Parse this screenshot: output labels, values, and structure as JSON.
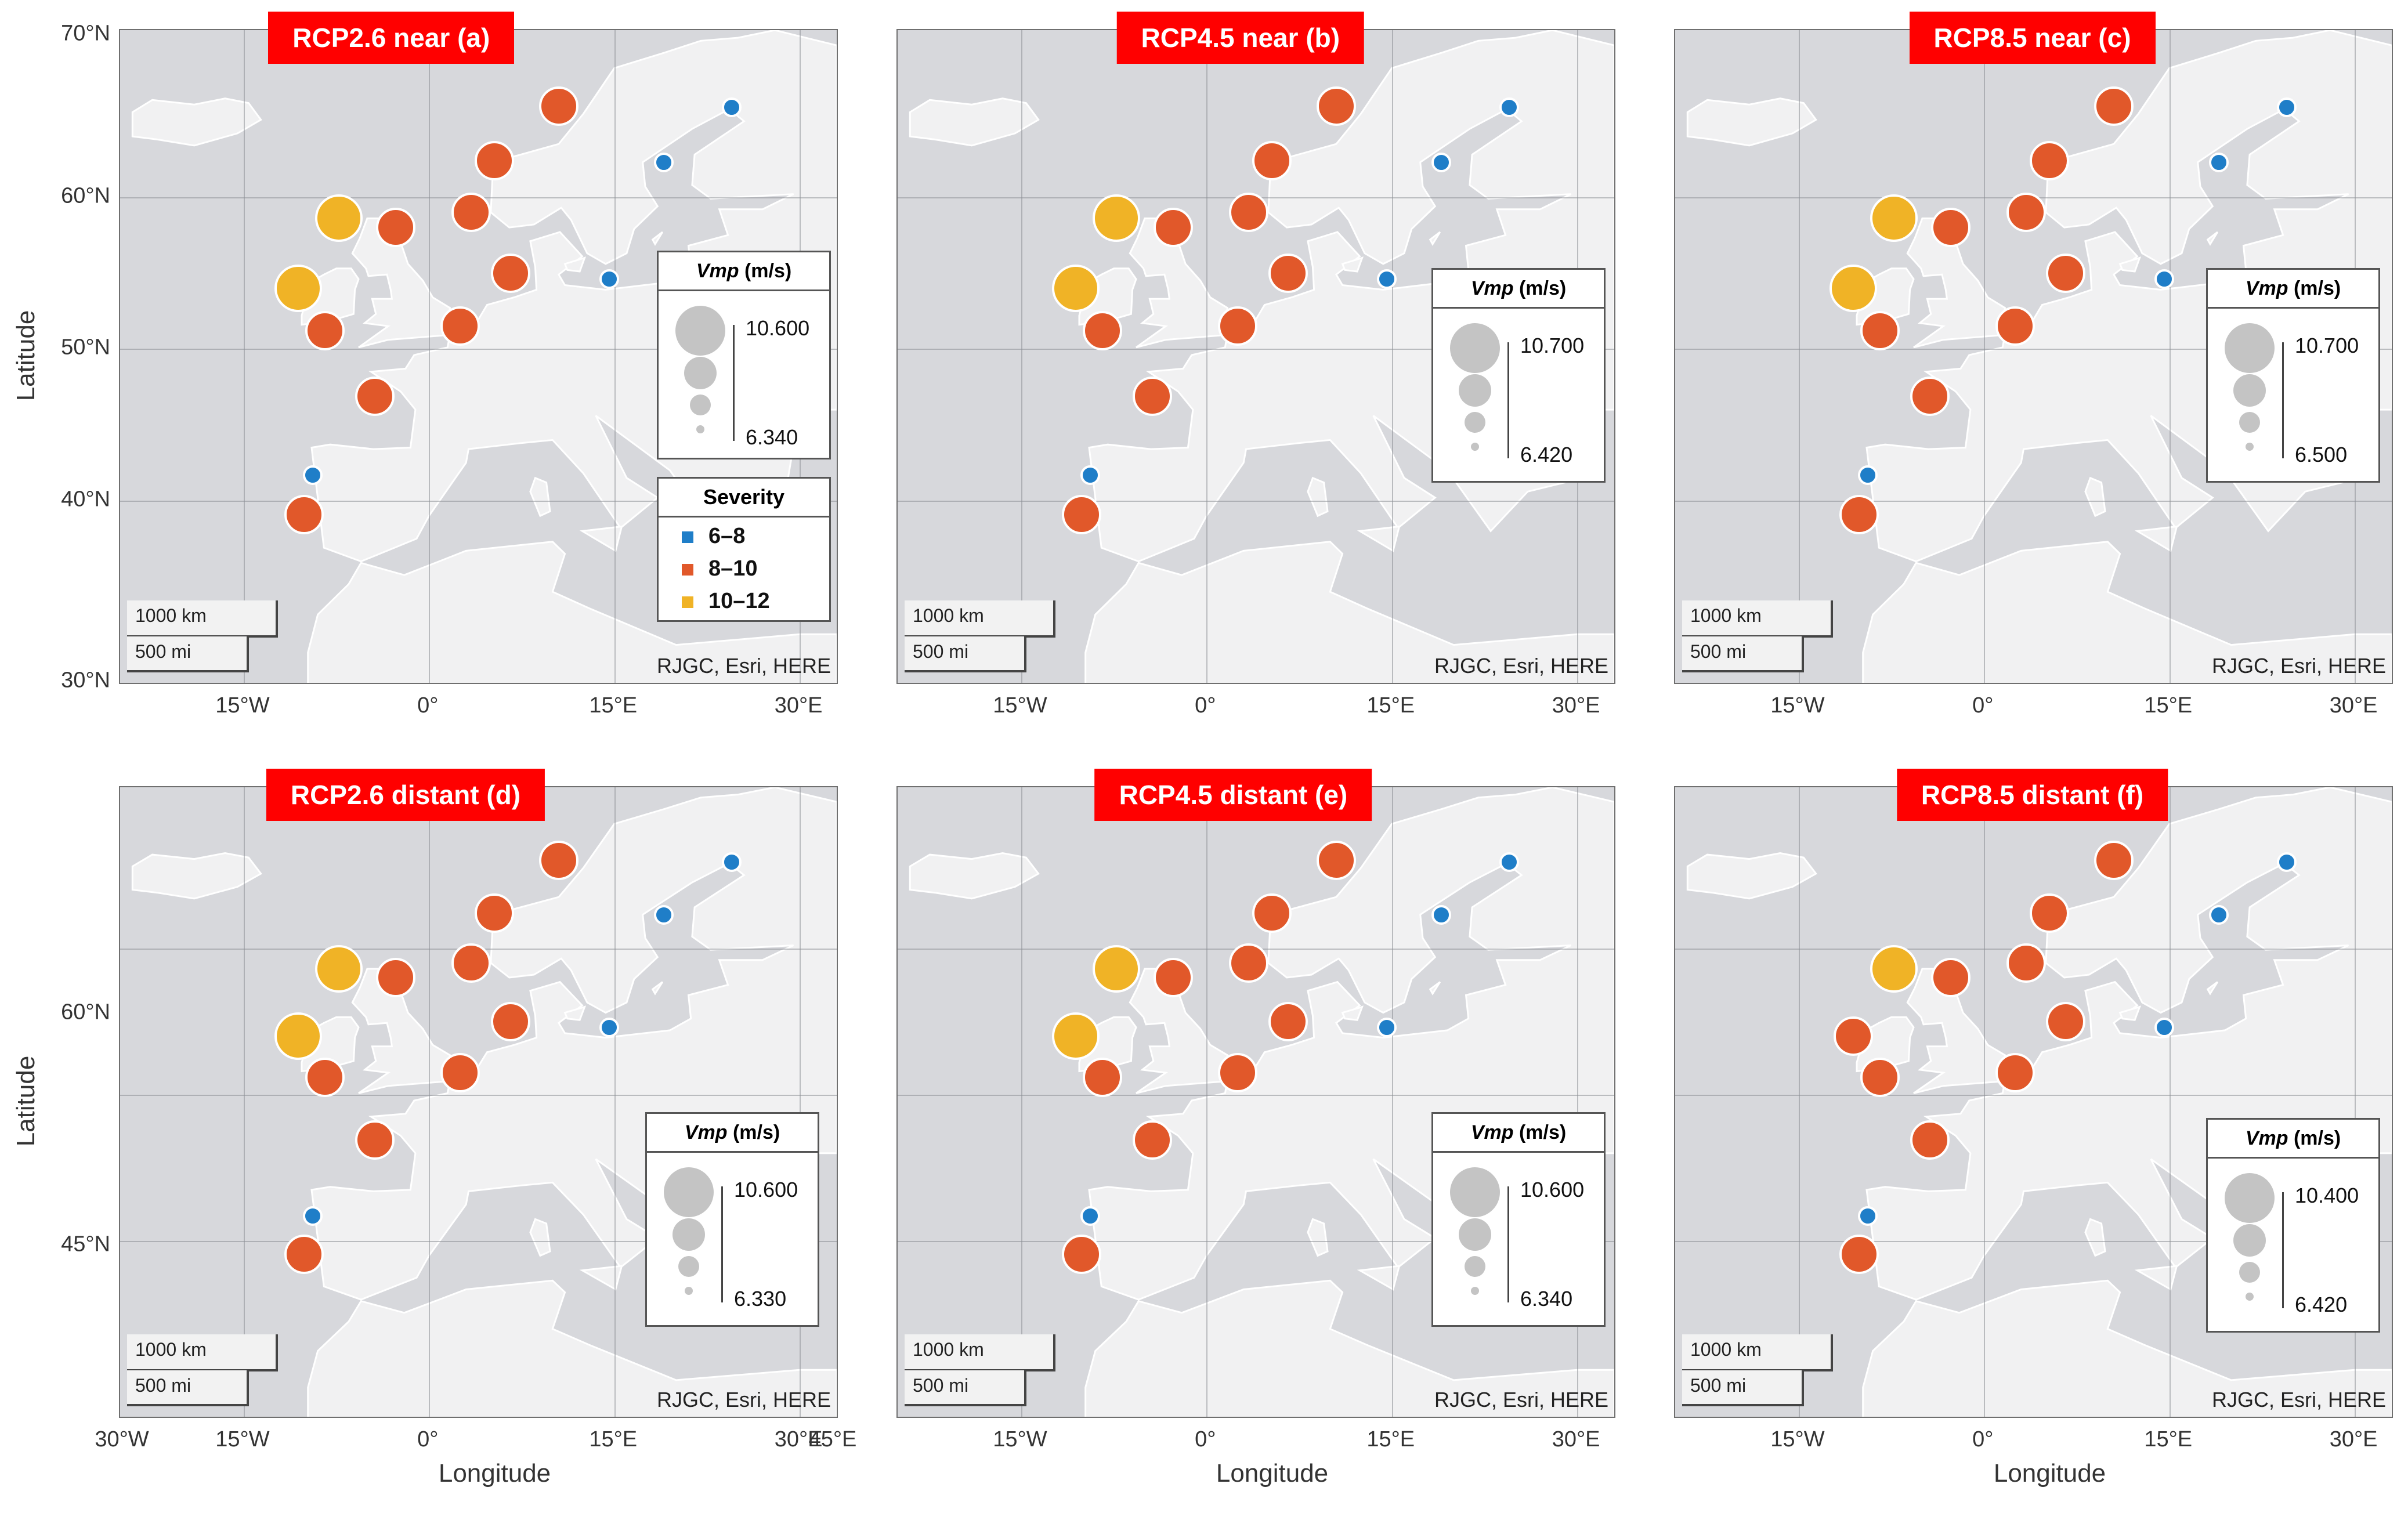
{
  "colors": {
    "blue": "#1f7ec8",
    "orange": "#e1582a",
    "yellow": "#f0b326",
    "title_bg": "#ff0000"
  },
  "attribution": "RJGC, Esri, HERE",
  "scale": {
    "km": "1000 km",
    "mi": "500 mi"
  },
  "axis_titles": {
    "latitude": "Latitude",
    "longitude": "Longitude"
  },
  "severity_legend": {
    "title": "Severity",
    "classes": [
      {
        "label": "6–8",
        "color": "#1f7ec8"
      },
      {
        "label": "8–10",
        "color": "#e1582a"
      },
      {
        "label": "10–12",
        "color": "#f0b326"
      }
    ]
  },
  "panels": [
    {
      "title": "RCP2.6 near (a)",
      "vmp_max": "10.600",
      "vmp_min": "6.340",
      "lat_ticks": [
        "70°N",
        "60°N",
        "50°N",
        "40°N",
        "30°N"
      ],
      "lon_ticks": [
        "15°W",
        "0°",
        "15°E",
        "30°E"
      ],
      "legend_title": "Vmp",
      "legend_unit": "(m/s)",
      "show_severity": true,
      "show_lat_title": true,
      "show_lon_title": false
    },
    {
      "title": "RCP4.5 near (b)",
      "vmp_max": "10.700",
      "vmp_min": "6.420",
      "lat_ticks": [],
      "lon_ticks": [
        "15°W",
        "0°",
        "15°E",
        "30°E"
      ],
      "legend_title": "Vmp",
      "legend_unit": "(m/s)",
      "show_severity": false,
      "show_lat_title": false,
      "show_lon_title": false
    },
    {
      "title": "RCP8.5 near (c)",
      "vmp_max": "10.700",
      "vmp_min": "6.500",
      "lat_ticks": [],
      "lon_ticks": [
        "15°W",
        "0°",
        "15°E",
        "30°E"
      ],
      "legend_title": "Vmp",
      "legend_unit": "(m/s)",
      "show_severity": false,
      "show_lat_title": false,
      "show_lon_title": false
    },
    {
      "title": "RCP2.6 distant (d)",
      "vmp_max": "10.600",
      "vmp_min": "6.330",
      "lat_ticks": [
        "60°N",
        "45°N"
      ],
      "lon_ticks": [
        "30°W",
        "15°W",
        "0°",
        "15°E",
        "30°E",
        "45°E"
      ],
      "legend_title": "Vmp",
      "legend_unit": "(m/s)",
      "show_severity": false,
      "show_lat_title": true,
      "show_lon_title": true
    },
    {
      "title": "RCP4.5 distant (e)",
      "vmp_max": "10.600",
      "vmp_min": "6.340",
      "lat_ticks": [],
      "lon_ticks": [
        "15°W",
        "0°",
        "15°E",
        "30°E"
      ],
      "legend_title": "Vmp",
      "legend_unit": "(m/s)",
      "show_severity": false,
      "show_lat_title": false,
      "show_lon_title": true
    },
    {
      "title": "RCP8.5 distant (f)",
      "vmp_max": "10.400",
      "vmp_min": "6.420",
      "lat_ticks": [],
      "lon_ticks": [
        "15°W",
        "0°",
        "15°E",
        "30°E"
      ],
      "legend_title": "Vmp",
      "legend_unit": "(m/s)",
      "show_severity": false,
      "show_lat_title": false,
      "show_lon_title": true
    }
  ],
  "sites": [
    {
      "id": "north-norway",
      "lon": 10.5,
      "lat": 66.0,
      "severity": [
        "8–10",
        "8–10",
        "8–10",
        "8–10",
        "8–10",
        "8–10"
      ]
    },
    {
      "id": "west-norway",
      "lon": 5.3,
      "lat": 62.4,
      "severity": [
        "8–10",
        "8–10",
        "8–10",
        "8–10",
        "8–10",
        "8–10"
      ]
    },
    {
      "id": "north-sea-north",
      "lon": 3.4,
      "lat": 59.0,
      "severity": [
        "8–10",
        "8–10",
        "8–10",
        "8–10",
        "8–10",
        "8–10"
      ]
    },
    {
      "id": "scotland-north",
      "lon": -2.7,
      "lat": 58.0,
      "severity": [
        "8–10",
        "8–10",
        "8–10",
        "8–10",
        "8–10",
        "8–10"
      ]
    },
    {
      "id": "hebrides",
      "lon": -7.3,
      "lat": 58.6,
      "severity": [
        "10–12",
        "10–12",
        "10–12",
        "10–12",
        "10–12",
        "10–12"
      ]
    },
    {
      "id": "ireland-north",
      "lon": -10.6,
      "lat": 54.0,
      "severity": [
        "10–12",
        "10–12",
        "10–12",
        "10–12",
        "10–12",
        "8–10"
      ]
    },
    {
      "id": "ireland-south",
      "lon": -8.4,
      "lat": 51.2,
      "severity": [
        "8–10",
        "8–10",
        "8–10",
        "8–10",
        "8–10",
        "8–10"
      ]
    },
    {
      "id": "denmark-west",
      "lon": 6.6,
      "lat": 55.0,
      "severity": [
        "8–10",
        "8–10",
        "8–10",
        "8–10",
        "8–10",
        "8–10"
      ]
    },
    {
      "id": "north-sea-south",
      "lon": 2.5,
      "lat": 51.5,
      "severity": [
        "8–10",
        "8–10",
        "8–10",
        "8–10",
        "8–10",
        "8–10"
      ]
    },
    {
      "id": "biscay",
      "lon": -4.4,
      "lat": 46.9,
      "severity": [
        "8–10",
        "8–10",
        "8–10",
        "8–10",
        "8–10",
        "8–10"
      ]
    },
    {
      "id": "galicia-north",
      "lon": -9.4,
      "lat": 41.7,
      "severity": [
        "6–8",
        "6–8",
        "6–8",
        "6–8",
        "6–8",
        "6–8"
      ]
    },
    {
      "id": "portugal",
      "lon": -10.1,
      "lat": 39.1,
      "severity": [
        "8–10",
        "8–10",
        "8–10",
        "8–10",
        "8–10",
        "8–10"
      ]
    },
    {
      "id": "baltic-sweden",
      "lon": 19.0,
      "lat": 62.3,
      "severity": [
        "6–8",
        "6–8",
        "6–8",
        "6–8",
        "6–8",
        "6–8"
      ]
    },
    {
      "id": "gulf-bothnia-north",
      "lon": 24.5,
      "lat": 65.9,
      "severity": [
        "6–8",
        "6–8",
        "6–8",
        "6–8",
        "6–8",
        "6–8"
      ]
    },
    {
      "id": "baltic-south",
      "lon": 14.6,
      "lat": 54.6,
      "severity": [
        "6–8",
        "6–8",
        "6–8",
        "6–8",
        "6–8",
        "6–8"
      ]
    }
  ]
}
